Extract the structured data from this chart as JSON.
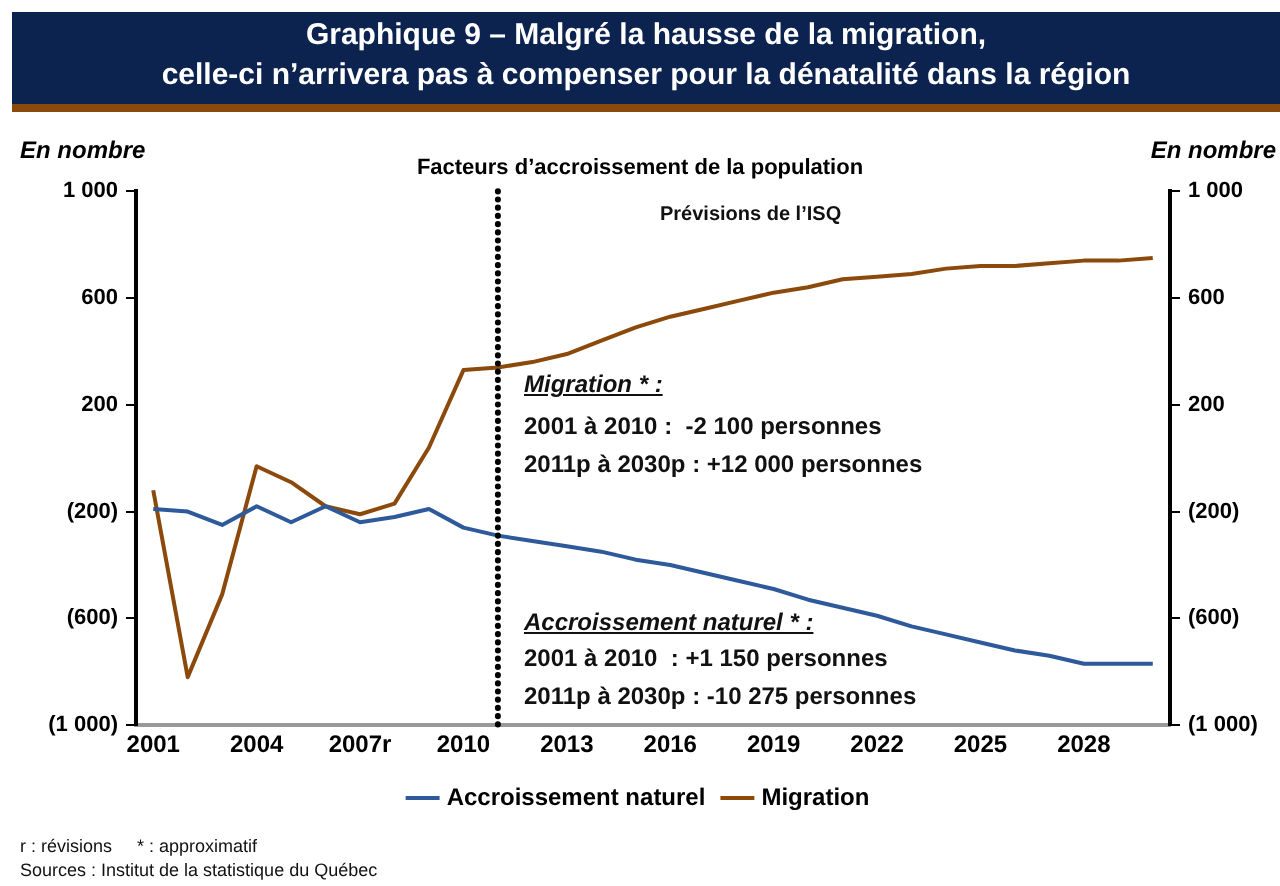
{
  "chart_data": {
    "type": "line",
    "title": "Graphique 9 – Malgré la hausse de la migration,\ncelle-ci n’arrivera pas à compenser pour la dénatalité dans la région",
    "subtitle": "Facteurs d’accroissement de la population",
    "ylabel": "En nombre",
    "y2label": "En nombre",
    "x": [
      2001,
      2002,
      2003,
      2004,
      2005,
      2006,
      2007,
      2008,
      2009,
      2010,
      2011,
      2012,
      2013,
      2014,
      2015,
      2016,
      2017,
      2018,
      2019,
      2020,
      2021,
      2022,
      2023,
      2024,
      2025,
      2026,
      2027,
      2028,
      2029,
      2030
    ],
    "series": [
      {
        "name": "Accroissement naturel",
        "color": "#2e5a9c",
        "values": [
          -190,
          -200,
          -250,
          -180,
          -240,
          -180,
          -240,
          -220,
          -190,
          -260,
          -290,
          -310,
          -330,
          -350,
          -380,
          -400,
          -430,
          -460,
          -490,
          -530,
          -560,
          -590,
          -630,
          -660,
          -690,
          -720,
          -740,
          -770,
          -770,
          -770
        ]
      },
      {
        "name": "Migration",
        "color": "#8b4a0c",
        "values": [
          -120,
          -820,
          -510,
          -30,
          -90,
          -180,
          -210,
          -170,
          40,
          330,
          340,
          360,
          390,
          440,
          490,
          530,
          560,
          590,
          620,
          640,
          670,
          680,
          690,
          710,
          720,
          720,
          730,
          740,
          740,
          750
        ]
      }
    ],
    "xlim": [
      2000.5,
      2030.5
    ],
    "xticks": [
      2001,
      2004,
      {
        "value": 2007,
        "label": "2007r"
      },
      2010,
      2013,
      2016,
      2019,
      2022,
      2025,
      2028
    ],
    "ylim": [
      -1000,
      1000
    ],
    "yticks": [
      {
        "value": -1000,
        "label": "(1 000)"
      },
      {
        "value": -600,
        "label": "(600)"
      },
      {
        "value": -200,
        "label": "(200)"
      },
      200,
      600,
      {
        "value": 1000,
        "label": "1 000"
      }
    ],
    "y2lim": [
      -1000,
      1000
    ],
    "y2ticks": [
      {
        "value": -1000,
        "label": "(1 000)"
      },
      {
        "value": -600,
        "label": "(600)"
      },
      {
        "value": -200,
        "label": "(200)"
      },
      200,
      600,
      {
        "value": 1000,
        "label": "1 000"
      }
    ],
    "ref_lines": [
      {
        "axis": "x",
        "value": 2011,
        "color": "#000000",
        "line_style": "dotted"
      }
    ],
    "annotations": [
      "Prévisions de l’ISQ",
      "Migration * :",
      "2001 à 2010 :  -2 100 personnes",
      "2011p à 2030p : +12 000 personnes",
      "Accroissement naturel * :",
      "2001 à 2010  : +1 150 personnes",
      "2011p à 2030p : -10 275 personnes",
      "r : révisions     * : approximatif",
      "Sources : Institut de la statistique du Québec"
    ],
    "legend": "bottom",
    "grid": false,
    "marker": "none",
    "line_style": "solid"
  }
}
